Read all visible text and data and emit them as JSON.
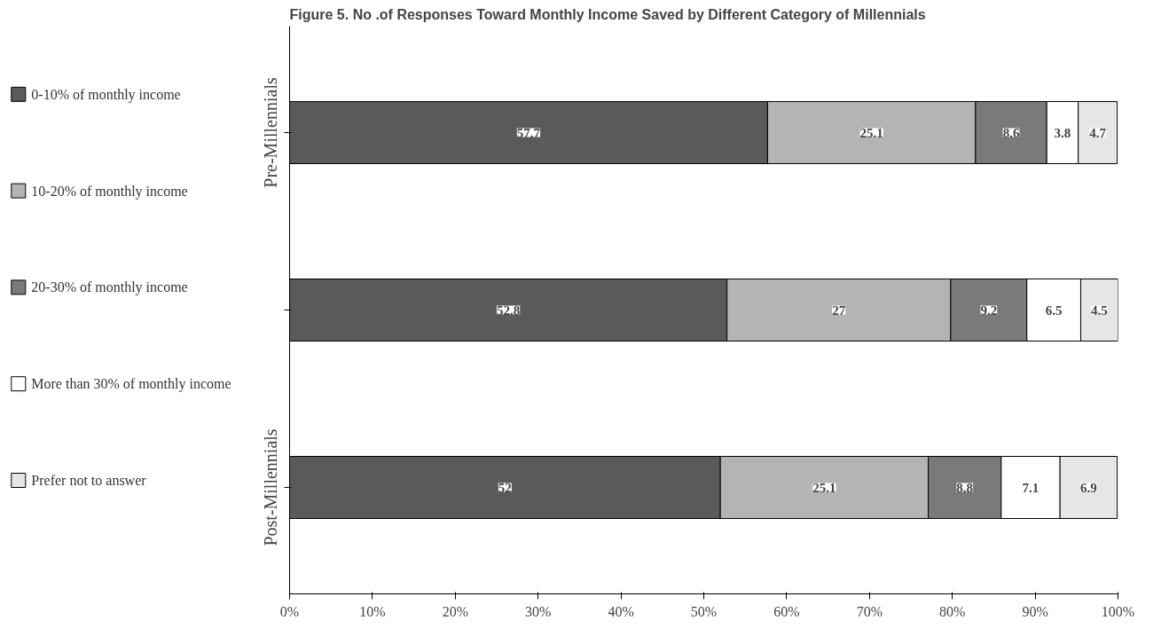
{
  "chart_data": {
    "type": "bar",
    "orientation": "horizontal",
    "stacked": true,
    "title": "Figure 5. No .of Responses Toward Monthly Income Saved  by Different Category of Millennials",
    "categories": [
      "Pre-Millennials",
      null,
      "Post-Millennials"
    ],
    "series": [
      {
        "name": "0-10% of monthly income",
        "color": "#5a5a5a",
        "values": [
          57.7,
          52.8,
          52
        ]
      },
      {
        "name": "10-20% of monthly income",
        "color": "#b4b4b4",
        "values": [
          25.1,
          27,
          25.1
        ]
      },
      {
        "name": "20-30% of monthly income",
        "color": "#7a7a7a",
        "values": [
          8.6,
          9.2,
          8.8
        ]
      },
      {
        "name": "More than 30% of monthly income",
        "color": "#ffffff",
        "values": [
          3.8,
          6.5,
          7.1
        ]
      },
      {
        "name": "Prefer not to answer",
        "color": "#e6e6e6",
        "values": [
          4.7,
          4.5,
          6.9
        ]
      }
    ],
    "xlim": [
      0,
      100
    ],
    "xticks": [
      {
        "value": 0,
        "label": "0%"
      },
      {
        "value": 10,
        "label": "10%"
      },
      {
        "value": 20,
        "label": "20%"
      },
      {
        "value": 30,
        "label": "30%"
      },
      {
        "value": 40,
        "label": "40%"
      },
      {
        "value": 50,
        "label": "50%"
      },
      {
        "value": 60,
        "label": "60%"
      },
      {
        "value": 70,
        "label": "70%"
      },
      {
        "value": 80,
        "label": "80%"
      },
      {
        "value": 90,
        "label": "90%"
      },
      {
        "value": 100,
        "label": "100%"
      }
    ],
    "data_labels": true,
    "grid": false,
    "legend": "left"
  }
}
